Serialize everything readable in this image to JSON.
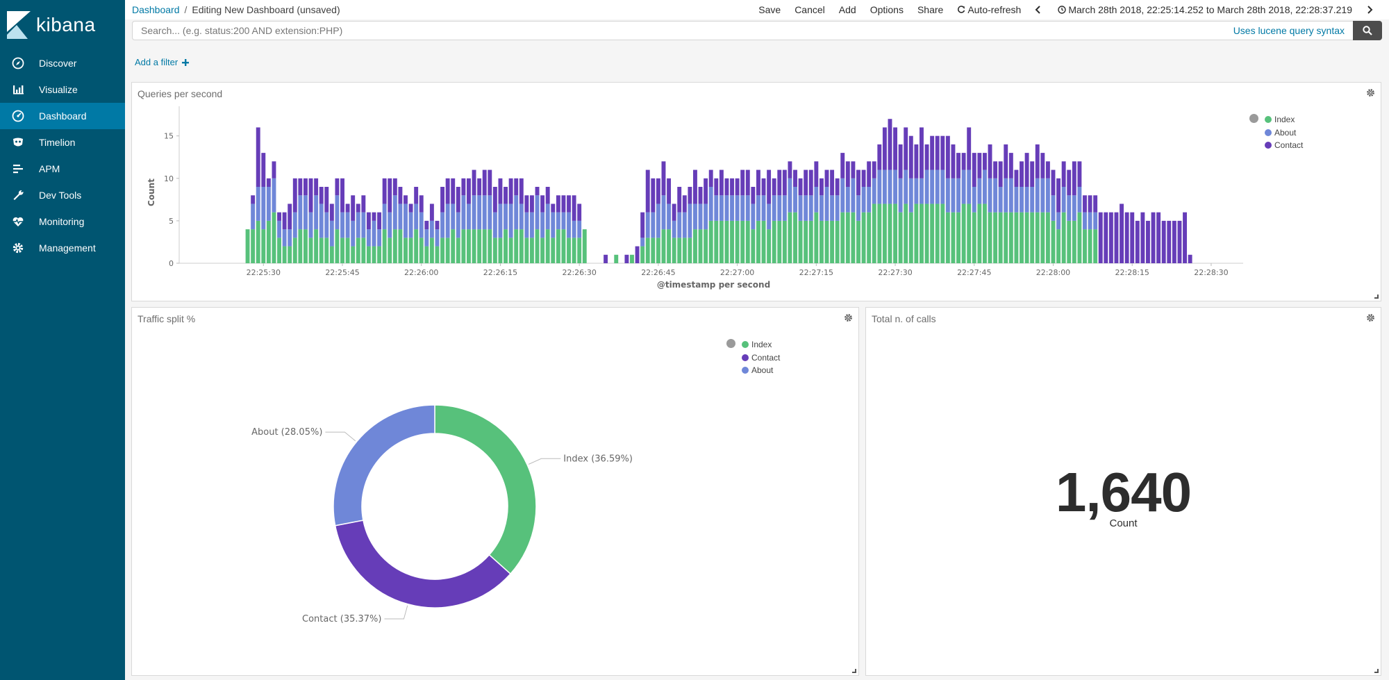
{
  "app": {
    "logo_text": "kibana"
  },
  "sidebar": {
    "items": [
      {
        "label": "Discover",
        "icon": "compass-icon"
      },
      {
        "label": "Visualize",
        "icon": "bar-chart-icon"
      },
      {
        "label": "Dashboard",
        "icon": "dashboard-icon",
        "active": true
      },
      {
        "label": "Timelion",
        "icon": "timelion-mask-icon"
      },
      {
        "label": "APM",
        "icon": "apm-lines-icon"
      },
      {
        "label": "Dev Tools",
        "icon": "wrench-icon"
      },
      {
        "label": "Monitoring",
        "icon": "heartbeat-icon"
      },
      {
        "label": "Management",
        "icon": "gear-icon"
      }
    ]
  },
  "breadcrumb": {
    "root": "Dashboard",
    "separator": "/",
    "current": "Editing New Dashboard (unsaved)"
  },
  "toolbar": {
    "save": "Save",
    "cancel": "Cancel",
    "add": "Add",
    "options": "Options",
    "share": "Share",
    "auto_refresh": "Auto-refresh",
    "time_range": "March 28th 2018, 22:25:14.252 to March 28th 2018, 22:28:37.219"
  },
  "search": {
    "placeholder": "Search... (e.g. status:200 AND extension:PHP)",
    "value": "",
    "syntax_link": "Uses lucene query syntax"
  },
  "filters": {
    "add_label": "Add a filter",
    "add_icon": "plus-icon"
  },
  "colors": {
    "index": "#57c17b",
    "about": "#6f87d8",
    "contact": "#663db8",
    "sidebar": "#005571",
    "sidebar_active": "#0079a5"
  },
  "panels": {
    "qps": {
      "title": "Queries per second"
    },
    "traffic": {
      "title": "Traffic split %"
    },
    "total": {
      "title": "Total n. of calls",
      "value": "1,640",
      "label": "Count"
    }
  },
  "chart_data": [
    {
      "type": "bar",
      "stacked": true,
      "title": "Queries per second",
      "xlabel": "@timestamp per second",
      "ylabel": "Count",
      "ylim": [
        0,
        18
      ],
      "yticks": [
        0,
        5,
        10,
        15
      ],
      "xticks": [
        "22:25:30",
        "22:25:45",
        "22:26:00",
        "22:26:15",
        "22:26:30",
        "22:26:45",
        "22:27:00",
        "22:27:15",
        "22:27:30",
        "22:27:45",
        "22:28:00",
        "22:28:15",
        "22:28:30"
      ],
      "x_start": "22:25:14",
      "x_end": "22:28:37",
      "first_bar_second": "22:25:27",
      "legend": [
        "Index",
        "About",
        "Contact"
      ],
      "legend_position": "top-right",
      "series": [
        {
          "name": "Index",
          "color": "#57c17b",
          "values": [
            4,
            4,
            5,
            4,
            5,
            6,
            3,
            2,
            2,
            3,
            4,
            4,
            3,
            4,
            3,
            3,
            2,
            4,
            3,
            3,
            2,
            3,
            3,
            2,
            2,
            2,
            4,
            3,
            4,
            4,
            3,
            3,
            4,
            3,
            2,
            3,
            2,
            3,
            3,
            4,
            3,
            4,
            4,
            4,
            4,
            4,
            4,
            3,
            3,
            4,
            3,
            4,
            4,
            3,
            3,
            4,
            3,
            4,
            3,
            4,
            4,
            3,
            3,
            3,
            4,
            0,
            0,
            0,
            0,
            0,
            1,
            0,
            0,
            1,
            0,
            2,
            3,
            3,
            3,
            4,
            4,
            3,
            3,
            3,
            3,
            4,
            4,
            4,
            5,
            5,
            5,
            5,
            5,
            5,
            5,
            5,
            4,
            5,
            5,
            4,
            5,
            5,
            5,
            6,
            6,
            5,
            5,
            5,
            6,
            5,
            5,
            5,
            5,
            6,
            6,
            6,
            5,
            6,
            6,
            7,
            7,
            7,
            7,
            7,
            6,
            7,
            6,
            7,
            7,
            7,
            7,
            7,
            7,
            6,
            6,
            6,
            7,
            7,
            6,
            7,
            7,
            6,
            6,
            6,
            6,
            6,
            6,
            6,
            6,
            6,
            6,
            6,
            6,
            5,
            4,
            6,
            5,
            5,
            6,
            4,
            4,
            4,
            0,
            0,
            0,
            0,
            0,
            0,
            0,
            0,
            0,
            0,
            0,
            0,
            0,
            0,
            0,
            0,
            0,
            0
          ]
        },
        {
          "name": "About",
          "color": "#6f87d8",
          "values": [
            0,
            3,
            4,
            5,
            4,
            4,
            2,
            2,
            2,
            3,
            4,
            4,
            3,
            4,
            4,
            3,
            3,
            4,
            3,
            3,
            3,
            3,
            3,
            2,
            3,
            2,
            3,
            3,
            4,
            3,
            4,
            3,
            3,
            3,
            2,
            2,
            2,
            3,
            4,
            3,
            3,
            4,
            3,
            4,
            4,
            4,
            4,
            3,
            4,
            3,
            4,
            4,
            3,
            3,
            3,
            4,
            3,
            3,
            3,
            2,
            2,
            3,
            2,
            2,
            0,
            0,
            0,
            0,
            0,
            0,
            0,
            0,
            0,
            0,
            0,
            1,
            3,
            3,
            4,
            4,
            3,
            2,
            3,
            3,
            4,
            3,
            3,
            3,
            4,
            3,
            3,
            3,
            3,
            3,
            3,
            3,
            3,
            3,
            3,
            3,
            3,
            3,
            3,
            4,
            3,
            3,
            3,
            3,
            3,
            3,
            4,
            3,
            3,
            4,
            3,
            4,
            3,
            3,
            3,
            3,
            4,
            4,
            4,
            4,
            4,
            4,
            4,
            3,
            3,
            4,
            4,
            4,
            4,
            4,
            4,
            4,
            4,
            4,
            3,
            3,
            4,
            4,
            4,
            3,
            4,
            4,
            3,
            3,
            3,
            3,
            4,
            4,
            4,
            3,
            2,
            3,
            3,
            3,
            3,
            2,
            2,
            2,
            0,
            0,
            0,
            0,
            0,
            0,
            0,
            0,
            0,
            0,
            0,
            0,
            0,
            0,
            0,
            0,
            0,
            0
          ]
        },
        {
          "name": "Contact",
          "color": "#663db8",
          "values": [
            0,
            1,
            7,
            4,
            1,
            2,
            1,
            2,
            3,
            4,
            2,
            2,
            4,
            2,
            2,
            3,
            2,
            2,
            4,
            1,
            3,
            1,
            2,
            2,
            1,
            2,
            3,
            4,
            2,
            2,
            1,
            1,
            2,
            2,
            1,
            2,
            1,
            3,
            3,
            3,
            3,
            2,
            3,
            3,
            2,
            3,
            3,
            3,
            3,
            2,
            3,
            2,
            3,
            2,
            2,
            1,
            2,
            2,
            1,
            2,
            2,
            2,
            3,
            2,
            0,
            0,
            0,
            0,
            1,
            0,
            0,
            0,
            1,
            0,
            2,
            3,
            5,
            4,
            3,
            4,
            3,
            2,
            3,
            2,
            2,
            4,
            2,
            3,
            2,
            2,
            3,
            2,
            2,
            2,
            3,
            3,
            2,
            3,
            2,
            4,
            2,
            3,
            3,
            2,
            2,
            2,
            3,
            3,
            3,
            2,
            2,
            3,
            2,
            3,
            3,
            2,
            3,
            2,
            3,
            2,
            3,
            5,
            6,
            5,
            4,
            5,
            5,
            4,
            6,
            3,
            4,
            4,
            4,
            5,
            4,
            3,
            2,
            5,
            4,
            3,
            2,
            4,
            2,
            3,
            4,
            3,
            2,
            3,
            4,
            3,
            4,
            3,
            2,
            3,
            4,
            3,
            3,
            4,
            3,
            2,
            2,
            2,
            6,
            6,
            6,
            6,
            7,
            6,
            6,
            5,
            6,
            5,
            6,
            6,
            5,
            5,
            5,
            5,
            6,
            1
          ]
        }
      ]
    },
    {
      "type": "pie",
      "donut": true,
      "title": "Traffic split %",
      "legend": [
        "Index",
        "Contact",
        "About"
      ],
      "legend_position": "top-right",
      "slices": [
        {
          "label": "Index",
          "value": 36.59,
          "display": "Index (36.59%)",
          "color": "#57c17b"
        },
        {
          "label": "Contact",
          "value": 35.37,
          "display": "Contact (35.37%)",
          "color": "#663db8"
        },
        {
          "label": "About",
          "value": 28.05,
          "display": "About (28.05%)",
          "color": "#6f87d8"
        }
      ]
    }
  ]
}
